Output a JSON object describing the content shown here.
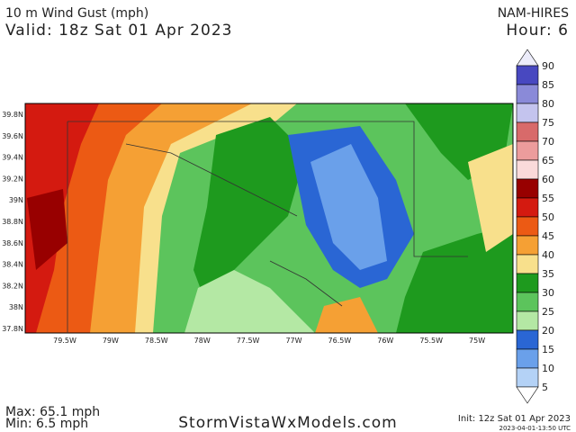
{
  "header": {
    "title": "10 m Wind Gust (mph)",
    "valid": "Valid: 18z Sat 01 Apr 2023",
    "model": "NAM-HIRES",
    "hour": "Hour: 6"
  },
  "map": {
    "lat_labels": [
      "39.8N",
      "39.6N",
      "39.4N",
      "39.2N",
      "39N",
      "38.8N",
      "38.6N",
      "38.4N",
      "38.2N",
      "38N",
      "37.8N"
    ],
    "lon_labels": [
      "79.5W",
      "79W",
      "78.5W",
      "78W",
      "77.5W",
      "77W",
      "76.5W",
      "76W",
      "75.5W",
      "75W"
    ]
  },
  "colorbar": {
    "labels": [
      "90",
      "85",
      "80",
      "75",
      "70",
      "65",
      "60",
      "55",
      "50",
      "45",
      "40",
      "35",
      "30",
      "25",
      "20",
      "15",
      "10",
      "5"
    ],
    "colors": [
      "#ececfa",
      "#4848c0",
      "#8a8ad8",
      "#c4c4ee",
      "#d86a6a",
      "#ec9c9c",
      "#fadada",
      "#980000",
      "#d41a10",
      "#ec5a14",
      "#f5a034",
      "#f8e08c",
      "#1e9a1e",
      "#5cc45c",
      "#b4e8a4",
      "#2a66d4",
      "#6aa0ea",
      "#b4d2f6",
      "#ffffff"
    ]
  },
  "footer": {
    "max": "Max: 65.1 mph",
    "min": "Min: 6.5 mph",
    "site": "StormVistaWxModels.com",
    "init": "Init: 12z Sat 01 Apr 2023",
    "timestamp": "2023-04-01-13:50 UTC"
  }
}
